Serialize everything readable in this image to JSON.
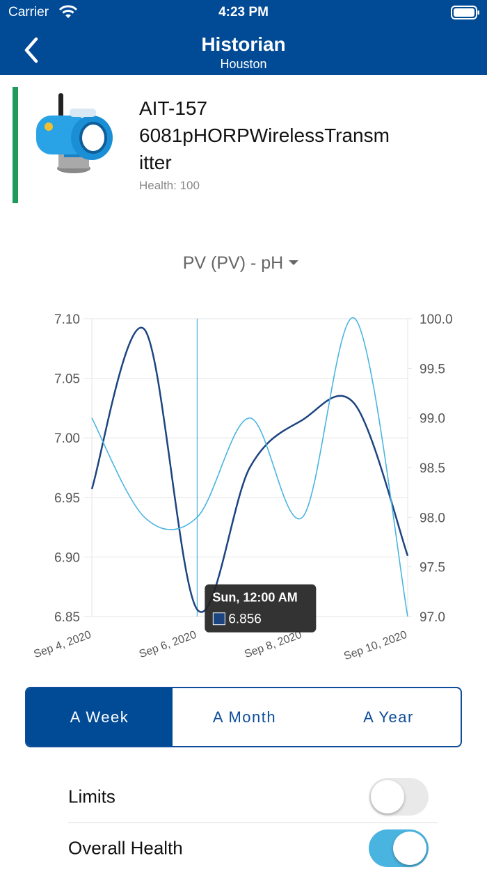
{
  "status_bar": {
    "carrier": "Carrier",
    "time": "4:23 PM"
  },
  "nav": {
    "title": "Historian",
    "subtitle": "Houston"
  },
  "device": {
    "name": "AIT-157 6081pHORPWirelessTransmitter",
    "health": "Health: 100"
  },
  "variable_selector": "PV (PV) - pH",
  "chart_data": {
    "type": "line",
    "x": [
      "Sep 4, 2020",
      null,
      "Sep 6, 2020",
      null,
      "Sep 8, 2020",
      null,
      "Sep 10, 2020"
    ],
    "series": [
      {
        "color": "#1c4480",
        "values": [
          6.957,
          7.091,
          6.856,
          6.975,
          7.015,
          7.028,
          6.901
        ]
      },
      {
        "color": "#4ab4e0",
        "axis": "y2",
        "values": [
          99.0,
          98.0,
          98.0,
          99.0,
          98.0,
          100.0,
          97.0
        ]
      }
    ],
    "ylim": [
      6.85,
      7.1
    ],
    "yticks": [
      6.85,
      {
        "value": 6.9,
        "label": "6.90"
      },
      6.95,
      {
        "value": 7.0,
        "label": "7.00"
      },
      7.05,
      {
        "value": 7.1,
        "label": "7.10"
      }
    ],
    "y2lim": [
      97.0,
      100.0
    ],
    "y2ticks": [
      {
        "value": 97,
        "label": "97.0"
      },
      97.5,
      {
        "value": 98,
        "label": "98.0"
      },
      98.5,
      {
        "value": 99,
        "label": "99.0"
      },
      99.5,
      {
        "value": 100,
        "label": "100.0"
      }
    ],
    "grid": true,
    "tooltip": {
      "title": "Sun, 12:00 AM",
      "value": 6.856
    }
  },
  "range_tabs": {
    "items": [
      "A Week",
      "A Month",
      "A Year"
    ],
    "selected": "A Week"
  },
  "toggles": [
    {
      "label": "Limits",
      "on": false
    },
    {
      "label": "Overall Health",
      "on": true
    }
  ]
}
